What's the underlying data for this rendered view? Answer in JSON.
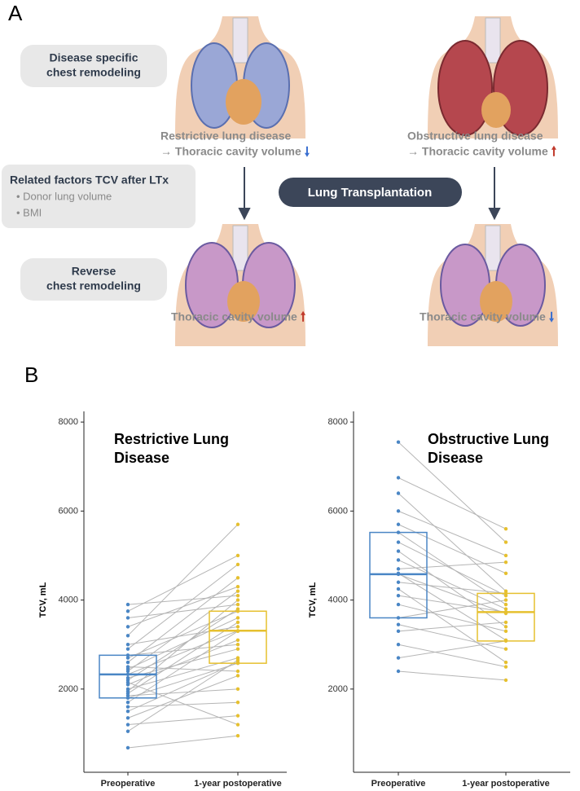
{
  "panel_a": {
    "label": "A",
    "box1": [
      "Disease specific",
      "chest remodeling"
    ],
    "box2": {
      "title": "Related factors TCV after LTx",
      "items": [
        "• Donor lung volume",
        "• BMI"
      ]
    },
    "box3": [
      "Reverse",
      "chest remodeling"
    ],
    "center": "Lung Transplantation",
    "top_left": [
      "Restrictive lung disease",
      "→ Thoracic cavity volume"
    ],
    "top_right": [
      "Obstructive lung disease",
      "→ Thoracic cavity volume"
    ],
    "bottom_left": "Thoracic cavity volume",
    "bottom_right": "Thoracic cavity volume"
  },
  "panel_b_label": "B",
  "chart_data": [
    {
      "type": "box",
      "title": [
        "Restrictive Lung",
        "Disease"
      ],
      "ylabel": "TCV, mL",
      "categories": [
        "Preoperative",
        "1-year postoperative"
      ],
      "ylim": [
        130,
        8240
      ],
      "yticks": [
        2000,
        4000,
        6000,
        8000
      ],
      "series": [
        {
          "name": "Preoperative",
          "color": "#4a86c5",
          "q1": 1800,
          "median": 2330,
          "q3": 2760,
          "values": [
            680,
            1050,
            1200,
            1350,
            1500,
            1600,
            1700,
            1800,
            1850,
            1900,
            1950,
            2000,
            2100,
            2150,
            2200,
            2250,
            2330,
            2400,
            2450,
            2500,
            2600,
            2700,
            2760,
            2900,
            3000,
            3200,
            3400,
            3600,
            3750,
            3900
          ]
        },
        {
          "name": "1-year postoperative",
          "color": "#e6c02f",
          "q1": 2580,
          "median": 3310,
          "q3": 3750,
          "values": [
            950,
            2650,
            1400,
            2300,
            2600,
            1700,
            3300,
            2580,
            2000,
            3500,
            4000,
            2700,
            3100,
            1200,
            3800,
            2900,
            3310,
            4200,
            3600,
            2400,
            4500,
            3750,
            3000,
            4800,
            3400,
            5700,
            4300,
            3900,
            5000,
            4100
          ]
        }
      ]
    },
    {
      "type": "box",
      "title": [
        "Obstructive Lung",
        "Disease"
      ],
      "ylabel": "TCV, mL",
      "categories": [
        "Preoperative",
        "1-year postoperative"
      ],
      "ylim": [
        130,
        8240
      ],
      "yticks": [
        2000,
        4000,
        6000,
        8000
      ],
      "series": [
        {
          "name": "Preoperative",
          "color": "#4a86c5",
          "q1": 3600,
          "median": 4580,
          "q3": 5520,
          "values": [
            2400,
            2700,
            3000,
            3300,
            3450,
            3600,
            3900,
            4100,
            4250,
            4400,
            4580,
            4600,
            4700,
            4900,
            5100,
            5300,
            5520,
            5700,
            6000,
            6400,
            6750,
            7550
          ]
        },
        {
          "name": "1-year postoperative",
          "color": "#e6c02f",
          "q1": 3080,
          "median": 3730,
          "q3": 4150,
          "values": [
            2200,
            3080,
            2500,
            3500,
            2900,
            4000,
            3300,
            3730,
            2600,
            4150,
            3700,
            3100,
            4850,
            3800,
            3400,
            4100,
            3900,
            4600,
            5000,
            4200,
            5600,
            5300
          ]
        }
      ]
    }
  ]
}
